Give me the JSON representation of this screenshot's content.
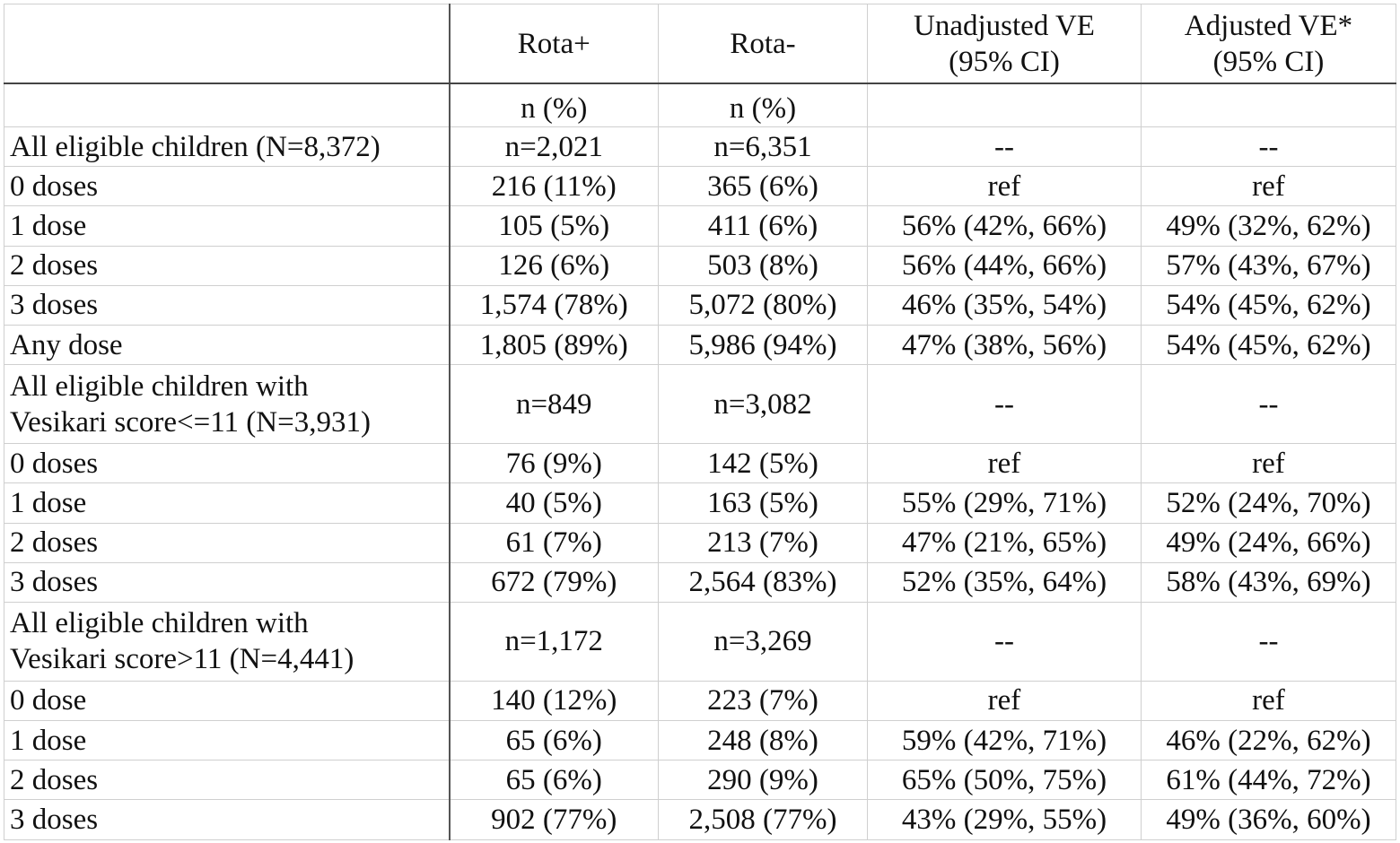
{
  "table": {
    "header": [
      "",
      "Rota+",
      "Rota-",
      [
        "Unadjusted VE",
        "(95% CI)"
      ],
      [
        "Adjusted VE*",
        "(95% CI)"
      ]
    ],
    "rows": [
      [
        "",
        "n (%)",
        "n (%)",
        "",
        ""
      ],
      [
        "All eligible children (N=8,372)",
        "n=2,021",
        "n=6,351",
        "--",
        "--"
      ],
      [
        "0 doses",
        "216 (11%)",
        "365 (6%)",
        "ref",
        "ref"
      ],
      [
        "1 dose",
        "105 (5%)",
        "411 (6%)",
        "56% (42%, 66%)",
        "49% (32%, 62%)"
      ],
      [
        "2 doses",
        "126 (6%)",
        "503 (8%)",
        "56% (44%, 66%)",
        "57% (43%, 67%)"
      ],
      [
        "3 doses",
        "1,574 (78%)",
        "5,072 (80%)",
        "46% (35%, 54%)",
        "54% (45%, 62%)"
      ],
      [
        "Any dose",
        "1,805 (89%)",
        "5,986 (94%)",
        "47% (38%, 56%)",
        "54% (45%, 62%)"
      ],
      [
        [
          "All eligible children with",
          "Vesikari score<=11 (N=3,931)"
        ],
        "n=849",
        "n=3,082",
        "--",
        "--"
      ],
      [
        "0 doses",
        "76 (9%)",
        "142 (5%)",
        "ref",
        "ref"
      ],
      [
        "1 dose",
        "40 (5%)",
        "163 (5%)",
        "55% (29%, 71%)",
        "52% (24%, 70%)"
      ],
      [
        "2 doses",
        "61 (7%)",
        "213 (7%)",
        "47% (21%, 65%)",
        "49% (24%, 66%)"
      ],
      [
        "3 doses",
        "672 (79%)",
        "2,564 (83%)",
        "52% (35%, 64%)",
        "58% (43%, 69%)"
      ],
      [
        [
          "All eligible children with",
          "Vesikari score>11 (N=4,441)"
        ],
        "n=1,172",
        "n=3,269",
        "--",
        "--"
      ],
      [
        "0 dose",
        "140 (12%)",
        "223 (7%)",
        "ref",
        "ref"
      ],
      [
        "1 dose",
        "65 (6%)",
        "248 (8%)",
        "59% (42%, 71%)",
        "46% (22%, 62%)"
      ],
      [
        "2 doses",
        "65 (6%)",
        "290 (9%)",
        "65% (50%, 75%)",
        "61% (44%, 72%)"
      ],
      [
        "3 doses",
        "902 (77%)",
        "2,508 (77%)",
        "43% (29%, 55%)",
        "49% (36%, 60%)"
      ]
    ]
  }
}
